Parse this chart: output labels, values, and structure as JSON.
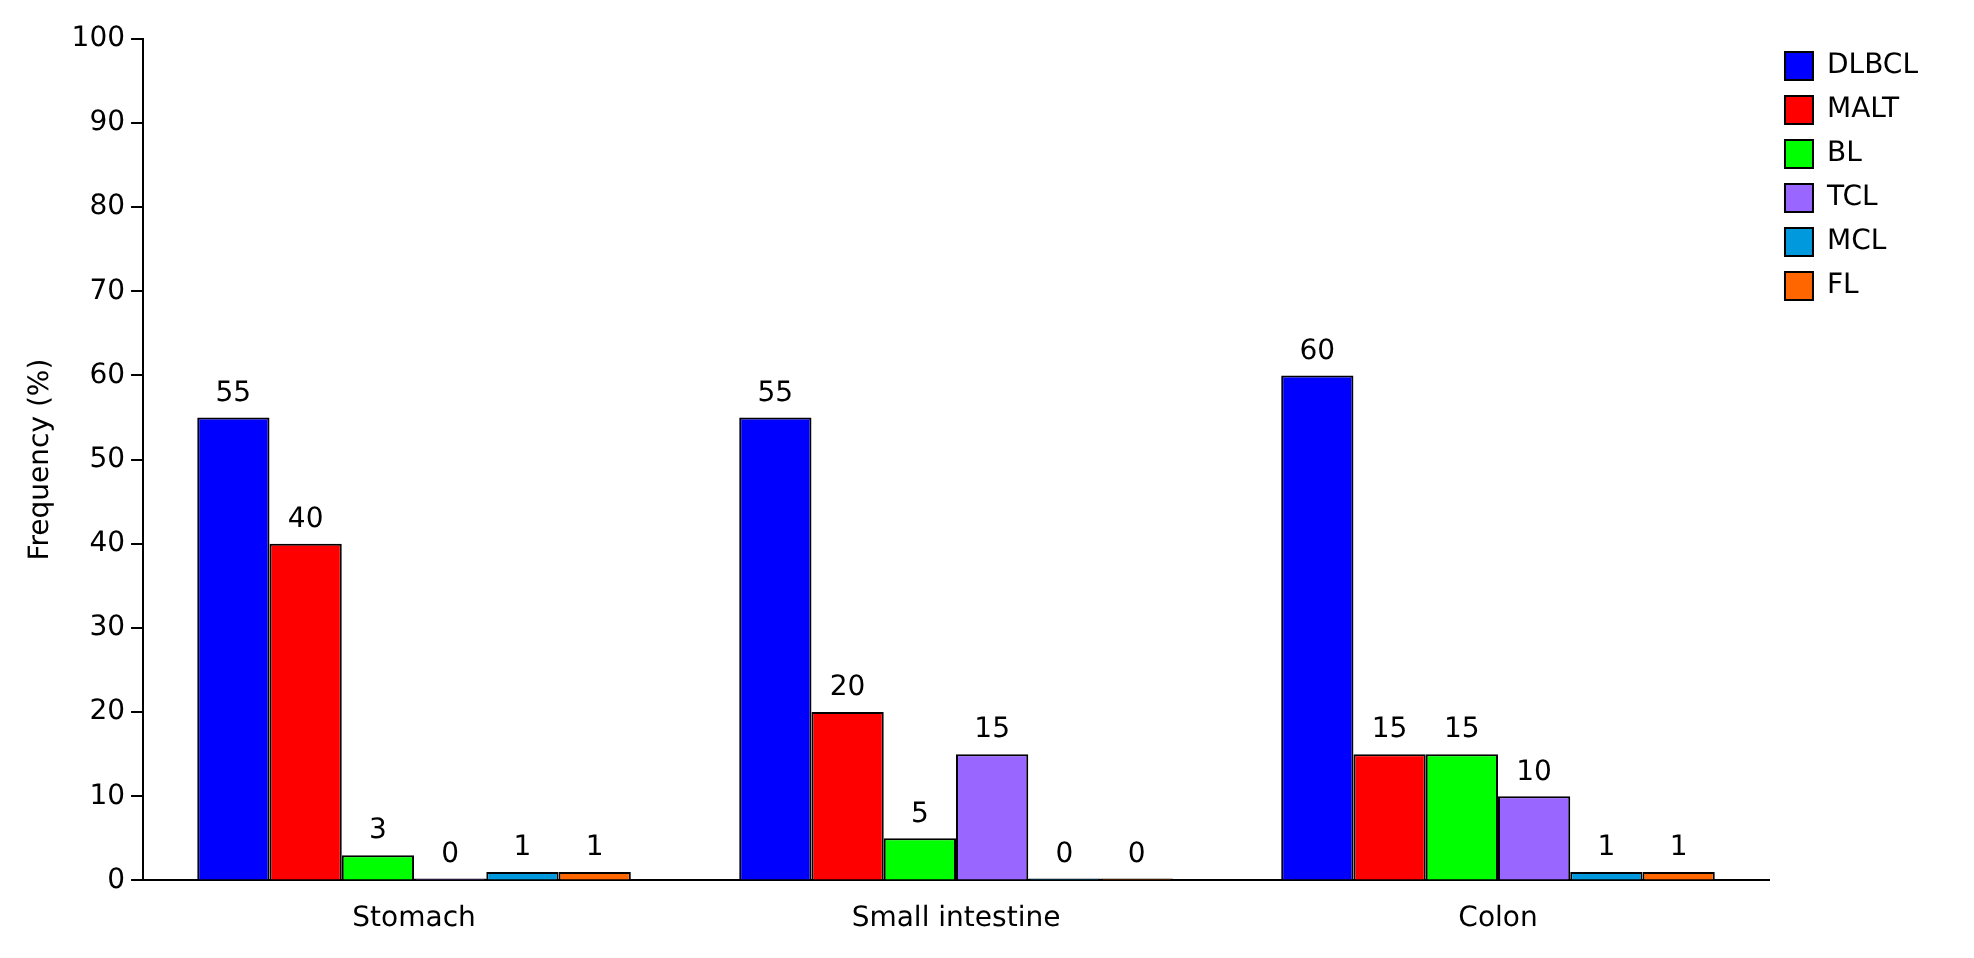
{
  "chart_data": {
    "type": "bar",
    "ylabel": "Frequency (%)",
    "categories": [
      "Stomach",
      "Small intestine",
      "Colon"
    ],
    "series": [
      {
        "name": "DLBCL",
        "color": "#0000ff",
        "values": [
          55,
          55,
          60
        ]
      },
      {
        "name": "MALT",
        "color": "#ff0000",
        "values": [
          40,
          20,
          15
        ]
      },
      {
        "name": "BL",
        "color": "#00ff00",
        "values": [
          3,
          5,
          15
        ]
      },
      {
        "name": "TCL",
        "color": "#9966ff",
        "values": [
          0,
          15,
          10
        ]
      },
      {
        "name": "MCL",
        "color": "#0099dd",
        "values": [
          1,
          0,
          1
        ]
      },
      {
        "name": "FL",
        "color": "#ff6600",
        "values": [
          1,
          0,
          1
        ]
      }
    ],
    "ylim": [
      0,
      100
    ],
    "yticks": [
      0,
      10,
      20,
      30,
      40,
      50,
      60,
      70,
      80,
      90,
      100
    ],
    "grid": false,
    "legend": "top right",
    "data_labels": true
  }
}
